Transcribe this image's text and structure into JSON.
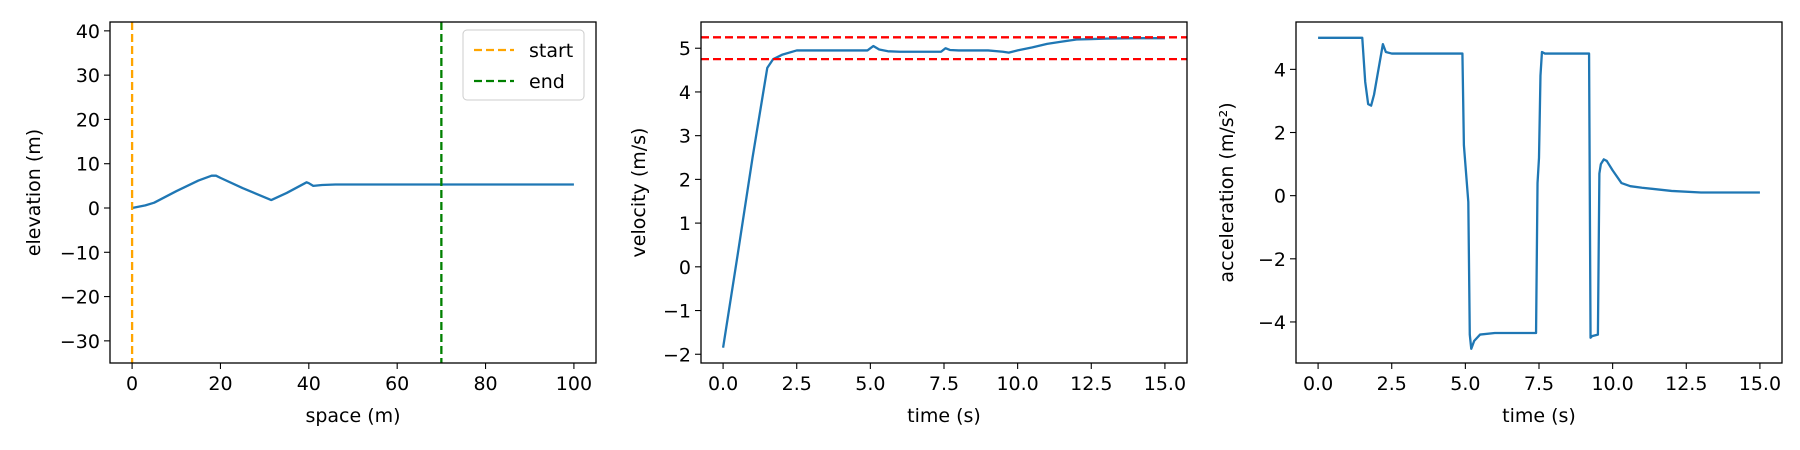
{
  "chart_data": [
    {
      "type": "line",
      "xlabel": "space (m)",
      "ylabel": "elevation (m)",
      "xlim": [
        -5,
        105
      ],
      "ylim": [
        -35,
        42
      ],
      "xticks": [
        0,
        20,
        40,
        60,
        80,
        100
      ],
      "yticks": [
        -30,
        -20,
        -10,
        0,
        10,
        20,
        30,
        40
      ],
      "xtick_labels": [
        "0",
        "20",
        "40",
        "60",
        "80",
        "100"
      ],
      "ytick_labels": [
        "−30",
        "−20",
        "−10",
        "0",
        "10",
        "20",
        "30",
        "40"
      ],
      "grid": false,
      "legend_position": "top-right",
      "series": [
        {
          "color": "#1f77b4",
          "x": [
            0,
            1,
            3,
            5,
            10,
            15,
            18,
            19,
            20,
            25,
            31.5,
            35,
            39.5,
            40,
            41,
            43,
            46,
            50,
            60,
            70,
            80,
            90,
            100
          ],
          "y": [
            0,
            0.2,
            0.6,
            1.2,
            3.8,
            6.2,
            7.3,
            7.3,
            6.8,
            4.5,
            1.8,
            3.4,
            5.8,
            5.6,
            5.0,
            5.2,
            5.3,
            5.3,
            5.3,
            5.3,
            5.3,
            5.3,
            5.3
          ]
        }
      ],
      "vlines": [
        {
          "label": "start",
          "x": 0,
          "color": "#ffa500",
          "style": "dashed"
        },
        {
          "label": "end",
          "x": 70,
          "color": "#008000",
          "style": "dashed"
        }
      ]
    },
    {
      "type": "line",
      "xlabel": "time (s)",
      "ylabel": "velocity (m/s)",
      "xlim": [
        -0.75,
        15.75
      ],
      "ylim": [
        -2.2,
        5.6
      ],
      "xticks": [
        0,
        2.5,
        5,
        7.5,
        10,
        12.5,
        15
      ],
      "yticks": [
        -2,
        -1,
        0,
        1,
        2,
        3,
        4,
        5
      ],
      "xtick_labels": [
        "0.0",
        "2.5",
        "5.0",
        "7.5",
        "10.0",
        "12.5",
        "15.0"
      ],
      "ytick_labels": [
        "−2",
        "−1",
        "0",
        "1",
        "2",
        "3",
        "4",
        "5"
      ],
      "grid": false,
      "series": [
        {
          "color": "#1f77b4",
          "x": [
            0,
            0.5,
            1.0,
            1.5,
            1.7,
            2.0,
            2.5,
            3,
            4,
            4.9,
            5.1,
            5.3,
            5.6,
            6,
            7,
            7.4,
            7.55,
            7.7,
            8,
            9,
            9.5,
            9.7,
            10,
            10.5,
            11,
            11.5,
            12,
            12.5,
            13,
            14,
            15
          ],
          "y": [
            -1.85,
            0.3,
            2.5,
            4.55,
            4.75,
            4.85,
            4.95,
            4.95,
            4.95,
            4.95,
            5.05,
            4.97,
            4.93,
            4.92,
            4.92,
            4.92,
            5.0,
            4.96,
            4.95,
            4.95,
            4.92,
            4.9,
            4.95,
            5.02,
            5.1,
            5.15,
            5.2,
            5.21,
            5.22,
            5.23,
            5.23
          ]
        }
      ],
      "hlines": [
        {
          "y": 5.25,
          "color": "#ff0000",
          "style": "dashed"
        },
        {
          "y": 4.75,
          "color": "#ff0000",
          "style": "dashed"
        }
      ]
    },
    {
      "type": "line",
      "xlabel": "time (s)",
      "ylabel": "acceleration (m/s²)",
      "xlim": [
        -0.75,
        15.75
      ],
      "ylim": [
        -5.3,
        5.5
      ],
      "xticks": [
        0,
        2.5,
        5,
        7.5,
        10,
        12.5,
        15
      ],
      "yticks": [
        -4,
        -2,
        0,
        2,
        4
      ],
      "xtick_labels": [
        "0.0",
        "2.5",
        "5.0",
        "7.5",
        "10.0",
        "12.5",
        "15.0"
      ],
      "ytick_labels": [
        "−4",
        "−2",
        "0",
        "2",
        "4"
      ],
      "grid": false,
      "series": [
        {
          "color": "#1f77b4",
          "x": [
            0,
            1.5,
            1.6,
            1.7,
            1.8,
            1.9,
            2.05,
            2.2,
            2.3,
            2.5,
            3,
            4,
            4.9,
            4.95,
            5.0,
            5.1,
            5.15,
            5.2,
            5.3,
            5.5,
            6,
            7.0,
            7.4,
            7.45,
            7.5,
            7.55,
            7.6,
            7.7,
            8.5,
            9.2,
            9.25,
            9.3,
            9.5,
            9.55,
            9.6,
            9.7,
            9.8,
            10,
            10.3,
            10.6,
            11,
            12,
            13,
            15
          ],
          "y": [
            5.0,
            5.0,
            3.6,
            2.9,
            2.85,
            3.2,
            4.0,
            4.8,
            4.55,
            4.5,
            4.5,
            4.5,
            4.5,
            1.6,
            1.0,
            -0.2,
            -4.4,
            -4.85,
            -4.6,
            -4.4,
            -4.35,
            -4.35,
            -4.35,
            0.4,
            1.2,
            3.8,
            4.55,
            4.5,
            4.5,
            4.5,
            -4.5,
            -4.45,
            -4.4,
            0.7,
            1.0,
            1.15,
            1.1,
            0.8,
            0.4,
            0.3,
            0.25,
            0.15,
            0.1,
            0.1
          ]
        }
      ]
    }
  ]
}
